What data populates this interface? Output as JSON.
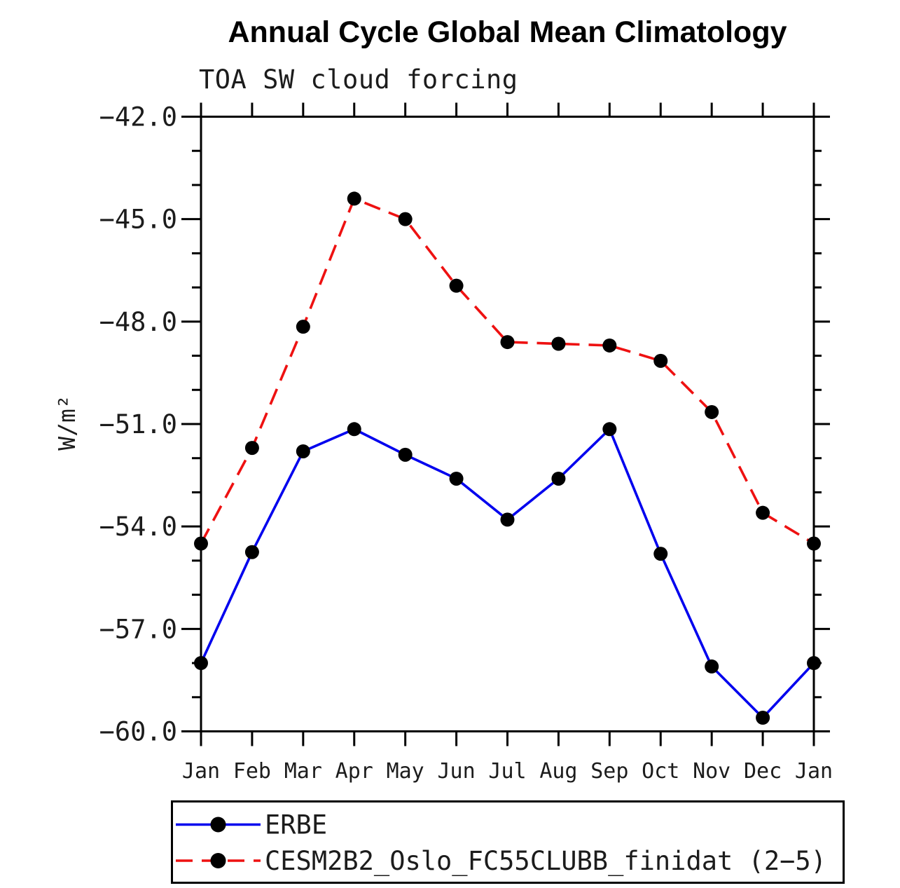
{
  "page": {
    "background": "#ffffff"
  },
  "chart_data": {
    "type": "line",
    "title": "Annual Cycle Global Mean Climatology",
    "subtitle": "TOA SW cloud forcing",
    "ylabel": "W/m²",
    "xlabel": "",
    "categories": [
      "Jan",
      "Feb",
      "Mar",
      "Apr",
      "May",
      "Jun",
      "Jul",
      "Aug",
      "Sep",
      "Oct",
      "Nov",
      "Dec",
      "Jan"
    ],
    "ylim": [
      -60,
      -42
    ],
    "yticks": [
      {
        "value": -42,
        "label": "−42.0"
      },
      {
        "value": -45,
        "label": "−45.0"
      },
      {
        "value": -48,
        "label": "−48.0"
      },
      {
        "value": -51,
        "label": "−51.0"
      },
      {
        "value": -54,
        "label": "−54.0"
      },
      {
        "value": -57,
        "label": "−57.0"
      },
      {
        "value": -60,
        "label": "−60.0"
      }
    ],
    "ytick_minor_step": 1,
    "grid": false,
    "legend_position": "bottom-left-box",
    "frame_color": "#000000",
    "marker_color": "#000000",
    "series": [
      {
        "id": "erbe",
        "name": "ERBE",
        "color": "#0000ee",
        "line_style": "solid",
        "marker": "filled-circle",
        "values": [
          -58.0,
          -54.75,
          -51.8,
          -51.15,
          -51.9,
          -52.6,
          -53.8,
          -52.6,
          -51.15,
          -54.8,
          -58.1,
          -59.6,
          -58.0
        ]
      },
      {
        "id": "cesm",
        "name": "CESM2B2_Oslo_FC55CLUBB_finidat (2−5)",
        "color": "#ee1111",
        "line_style": "dashed",
        "marker": "filled-circle",
        "values": [
          -54.5,
          -51.7,
          -48.15,
          -44.4,
          -45.0,
          -46.95,
          -48.6,
          -48.65,
          -48.7,
          -49.15,
          -50.65,
          -53.6,
          -54.5
        ]
      }
    ]
  }
}
